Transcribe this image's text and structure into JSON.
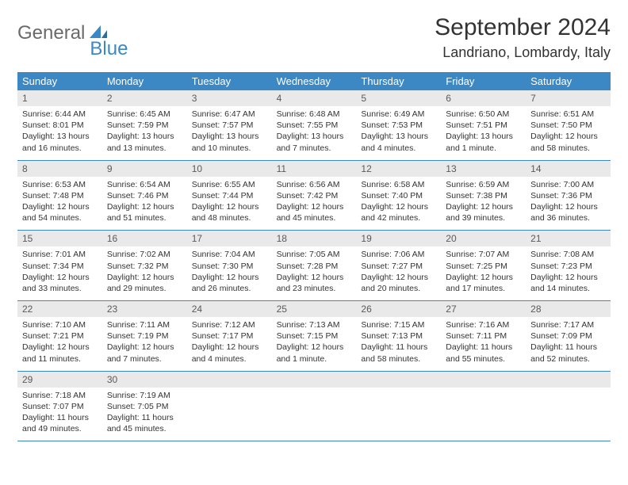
{
  "logo": {
    "text1": "General",
    "text2": "Blue"
  },
  "title": "September 2024",
  "location": "Landriano, Lombardy, Italy",
  "colors": {
    "header_bg": "#3b88c4",
    "daynum_bg": "#e9e9e9",
    "row_border": "#3b88c4",
    "logo_gray": "#6a6a6a",
    "logo_blue": "#3b88c4"
  },
  "day_headers": [
    "Sunday",
    "Monday",
    "Tuesday",
    "Wednesday",
    "Thursday",
    "Friday",
    "Saturday"
  ],
  "days": [
    {
      "n": "1",
      "sr": "Sunrise: 6:44 AM",
      "ss": "Sunset: 8:01 PM",
      "d1": "Daylight: 13 hours",
      "d2": "and 16 minutes."
    },
    {
      "n": "2",
      "sr": "Sunrise: 6:45 AM",
      "ss": "Sunset: 7:59 PM",
      "d1": "Daylight: 13 hours",
      "d2": "and 13 minutes."
    },
    {
      "n": "3",
      "sr": "Sunrise: 6:47 AM",
      "ss": "Sunset: 7:57 PM",
      "d1": "Daylight: 13 hours",
      "d2": "and 10 minutes."
    },
    {
      "n": "4",
      "sr": "Sunrise: 6:48 AM",
      "ss": "Sunset: 7:55 PM",
      "d1": "Daylight: 13 hours",
      "d2": "and 7 minutes."
    },
    {
      "n": "5",
      "sr": "Sunrise: 6:49 AM",
      "ss": "Sunset: 7:53 PM",
      "d1": "Daylight: 13 hours",
      "d2": "and 4 minutes."
    },
    {
      "n": "6",
      "sr": "Sunrise: 6:50 AM",
      "ss": "Sunset: 7:51 PM",
      "d1": "Daylight: 13 hours",
      "d2": "and 1 minute."
    },
    {
      "n": "7",
      "sr": "Sunrise: 6:51 AM",
      "ss": "Sunset: 7:50 PM",
      "d1": "Daylight: 12 hours",
      "d2": "and 58 minutes."
    },
    {
      "n": "8",
      "sr": "Sunrise: 6:53 AM",
      "ss": "Sunset: 7:48 PM",
      "d1": "Daylight: 12 hours",
      "d2": "and 54 minutes."
    },
    {
      "n": "9",
      "sr": "Sunrise: 6:54 AM",
      "ss": "Sunset: 7:46 PM",
      "d1": "Daylight: 12 hours",
      "d2": "and 51 minutes."
    },
    {
      "n": "10",
      "sr": "Sunrise: 6:55 AM",
      "ss": "Sunset: 7:44 PM",
      "d1": "Daylight: 12 hours",
      "d2": "and 48 minutes."
    },
    {
      "n": "11",
      "sr": "Sunrise: 6:56 AM",
      "ss": "Sunset: 7:42 PM",
      "d1": "Daylight: 12 hours",
      "d2": "and 45 minutes."
    },
    {
      "n": "12",
      "sr": "Sunrise: 6:58 AM",
      "ss": "Sunset: 7:40 PM",
      "d1": "Daylight: 12 hours",
      "d2": "and 42 minutes."
    },
    {
      "n": "13",
      "sr": "Sunrise: 6:59 AM",
      "ss": "Sunset: 7:38 PM",
      "d1": "Daylight: 12 hours",
      "d2": "and 39 minutes."
    },
    {
      "n": "14",
      "sr": "Sunrise: 7:00 AM",
      "ss": "Sunset: 7:36 PM",
      "d1": "Daylight: 12 hours",
      "d2": "and 36 minutes."
    },
    {
      "n": "15",
      "sr": "Sunrise: 7:01 AM",
      "ss": "Sunset: 7:34 PM",
      "d1": "Daylight: 12 hours",
      "d2": "and 33 minutes."
    },
    {
      "n": "16",
      "sr": "Sunrise: 7:02 AM",
      "ss": "Sunset: 7:32 PM",
      "d1": "Daylight: 12 hours",
      "d2": "and 29 minutes."
    },
    {
      "n": "17",
      "sr": "Sunrise: 7:04 AM",
      "ss": "Sunset: 7:30 PM",
      "d1": "Daylight: 12 hours",
      "d2": "and 26 minutes."
    },
    {
      "n": "18",
      "sr": "Sunrise: 7:05 AM",
      "ss": "Sunset: 7:28 PM",
      "d1": "Daylight: 12 hours",
      "d2": "and 23 minutes."
    },
    {
      "n": "19",
      "sr": "Sunrise: 7:06 AM",
      "ss": "Sunset: 7:27 PM",
      "d1": "Daylight: 12 hours",
      "d2": "and 20 minutes."
    },
    {
      "n": "20",
      "sr": "Sunrise: 7:07 AM",
      "ss": "Sunset: 7:25 PM",
      "d1": "Daylight: 12 hours",
      "d2": "and 17 minutes."
    },
    {
      "n": "21",
      "sr": "Sunrise: 7:08 AM",
      "ss": "Sunset: 7:23 PM",
      "d1": "Daylight: 12 hours",
      "d2": "and 14 minutes."
    },
    {
      "n": "22",
      "sr": "Sunrise: 7:10 AM",
      "ss": "Sunset: 7:21 PM",
      "d1": "Daylight: 12 hours",
      "d2": "and 11 minutes."
    },
    {
      "n": "23",
      "sr": "Sunrise: 7:11 AM",
      "ss": "Sunset: 7:19 PM",
      "d1": "Daylight: 12 hours",
      "d2": "and 7 minutes."
    },
    {
      "n": "24",
      "sr": "Sunrise: 7:12 AM",
      "ss": "Sunset: 7:17 PM",
      "d1": "Daylight: 12 hours",
      "d2": "and 4 minutes."
    },
    {
      "n": "25",
      "sr": "Sunrise: 7:13 AM",
      "ss": "Sunset: 7:15 PM",
      "d1": "Daylight: 12 hours",
      "d2": "and 1 minute."
    },
    {
      "n": "26",
      "sr": "Sunrise: 7:15 AM",
      "ss": "Sunset: 7:13 PM",
      "d1": "Daylight: 11 hours",
      "d2": "and 58 minutes."
    },
    {
      "n": "27",
      "sr": "Sunrise: 7:16 AM",
      "ss": "Sunset: 7:11 PM",
      "d1": "Daylight: 11 hours",
      "d2": "and 55 minutes."
    },
    {
      "n": "28",
      "sr": "Sunrise: 7:17 AM",
      "ss": "Sunset: 7:09 PM",
      "d1": "Daylight: 11 hours",
      "d2": "and 52 minutes."
    },
    {
      "n": "29",
      "sr": "Sunrise: 7:18 AM",
      "ss": "Sunset: 7:07 PM",
      "d1": "Daylight: 11 hours",
      "d2": "and 49 minutes."
    },
    {
      "n": "30",
      "sr": "Sunrise: 7:19 AM",
      "ss": "Sunset: 7:05 PM",
      "d1": "Daylight: 11 hours",
      "d2": "and 45 minutes."
    }
  ]
}
